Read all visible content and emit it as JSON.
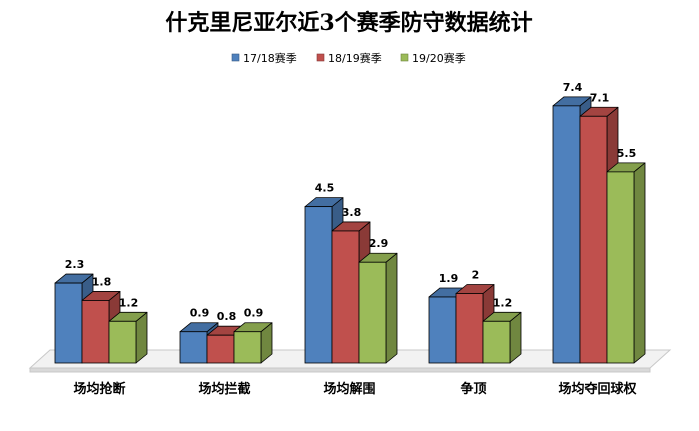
{
  "chart_data": {
    "type": "bar",
    "title": "什克里尼亚尔近3个赛季防守数据统计",
    "categories": [
      "场均抢断",
      "场均拦截",
      "场均解围",
      "争顶",
      "场均夺回球权"
    ],
    "series": [
      {
        "name": "17/18赛季",
        "values": [
          2.3,
          0.9,
          4.5,
          1.9,
          7.4
        ],
        "color": "#4F81BD"
      },
      {
        "name": "18/19赛季",
        "values": [
          1.8,
          0.8,
          3.8,
          2,
          7.1
        ],
        "color": "#C0504D"
      },
      {
        "name": "19/20赛季",
        "values": [
          1.2,
          0.9,
          2.9,
          1.2,
          5.5
        ],
        "color": "#9BBB59"
      }
    ],
    "ylim": [
      0,
      8
    ],
    "grid": false,
    "legend_position": "top",
    "style": "3d-clustered-column"
  }
}
